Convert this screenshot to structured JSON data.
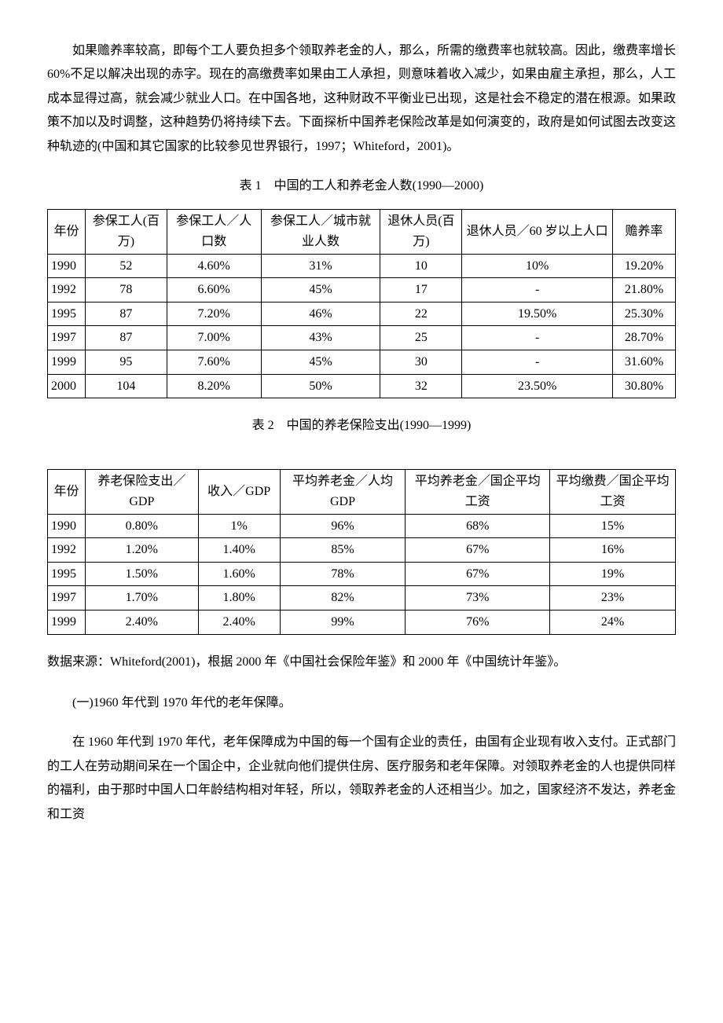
{
  "paragraph1": "如果赡养率较高，即每个工人要负担多个领取养老金的人，那么，所需的缴费率也就较高。因此，缴费率增长 60%不足以解决出现的赤字。现在的高缴费率如果由工人承担，则意味着收入减少，如果由雇主承担，那么，人工成本显得过高，就会减少就业人口。在中国各地，这种财政不平衡业已出现，这是社会不稳定的潜在根源。如果政策不加以及时调整，这种趋势仍将持续下去。下面探析中国养老保险改革是如何演变的，政府是如何试图去改变这种轨迹的(中国和其它国家的比较参见世界银行，1997；Whiteford，2001)。",
  "table1": {
    "title": "表 1　中国的工人和养老金人数(1990—2000)",
    "headers": [
      "年份",
      "参保工人(百万)",
      "参保工人／人口数",
      "参保工人／城市就业人数",
      "退休人员(百万)",
      "退休人员／60 岁以上人口",
      "赡养率"
    ],
    "rows": [
      [
        "1990",
        "52",
        "4.60%",
        "31%",
        "10",
        "10%",
        "19.20%"
      ],
      [
        "1992",
        "78",
        "6.60%",
        "45%",
        "17",
        "-",
        "21.80%"
      ],
      [
        "1995",
        "87",
        "7.20%",
        "46%",
        "22",
        "19.50%",
        "25.30%"
      ],
      [
        "1997",
        "87",
        "7.00%",
        "43%",
        "25",
        "-",
        "28.70%"
      ],
      [
        "1999",
        "95",
        "7.60%",
        "45%",
        "30",
        "-",
        "31.60%"
      ],
      [
        "2000",
        "104",
        "8.20%",
        "50%",
        "32",
        "23.50%",
        "30.80%"
      ]
    ],
    "col_widths": [
      "6%",
      "13%",
      "15%",
      "19%",
      "13%",
      "24%",
      "10%"
    ]
  },
  "table2": {
    "title": "表 2　中国的养老保险支出(1990—1999)",
    "headers": [
      "年份",
      "养老保险支出／GDP",
      "收入／GDP",
      "平均养老金／人均 GDP",
      "平均养老金／国企平均工资",
      "平均缴费／国企平均工资"
    ],
    "rows": [
      [
        "1990",
        "0.80%",
        "1%",
        "96%",
        "68%",
        "15%"
      ],
      [
        "1992",
        "1.20%",
        "1.40%",
        "85%",
        "67%",
        "16%"
      ],
      [
        "1995",
        "1.50%",
        "1.60%",
        "78%",
        "67%",
        "19%"
      ],
      [
        "1997",
        "1.70%",
        "1.80%",
        "82%",
        "73%",
        "23%"
      ],
      [
        "1999",
        "2.40%",
        "2.40%",
        "99%",
        "76%",
        "24%"
      ]
    ],
    "col_widths": [
      "6%",
      "18%",
      "13%",
      "20%",
      "23%",
      "20%"
    ]
  },
  "source_note": "数据来源：Whiteford(2001)，根据 2000 年《中国社会保险年鉴》和 2000 年《中国统计年鉴》。",
  "subheading": "(一)1960 年代到 1970 年代的老年保障。",
  "paragraph2": "在 1960 年代到 1970 年代，老年保障成为中国的每一个国有企业的责任，由国有企业现有收入支付。正式部门的工人在劳动期间呆在一个国企中，企业就向他们提供住房、医疗服务和老年保障。对领取养老金的人也提供同样的福利，由于那时中国人口年龄结构相对年轻，所以，领取养老金的人还相当少。加之，国家经济不发达，养老金和工资"
}
